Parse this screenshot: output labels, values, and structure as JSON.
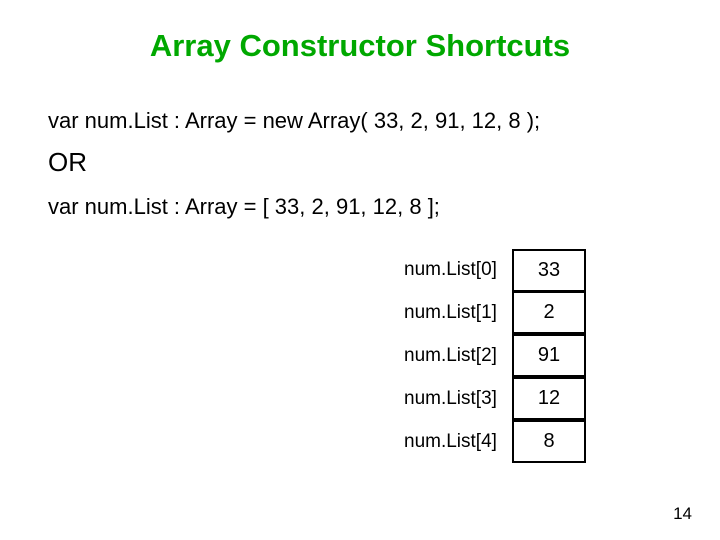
{
  "title": "Array Constructor Shortcuts",
  "title_color": "#00a800",
  "code1": "var num.List : Array = new Array( 33, 2, 91, 12, 8 );",
  "or_label": "OR",
  "code2": "var num.List : Array = [ 33, 2, 91, 12, 8 ];",
  "text_color": "#000000",
  "table": {
    "border_color": "#000000",
    "rows": [
      {
        "label": "num.List[0]",
        "value": "33"
      },
      {
        "label": "num.List[1]",
        "value": "2"
      },
      {
        "label": "num.List[2]",
        "value": "91"
      },
      {
        "label": "num.List[3]",
        "value": "12"
      },
      {
        "label": "num.List[4]",
        "value": "8"
      }
    ]
  },
  "page_number": "14"
}
